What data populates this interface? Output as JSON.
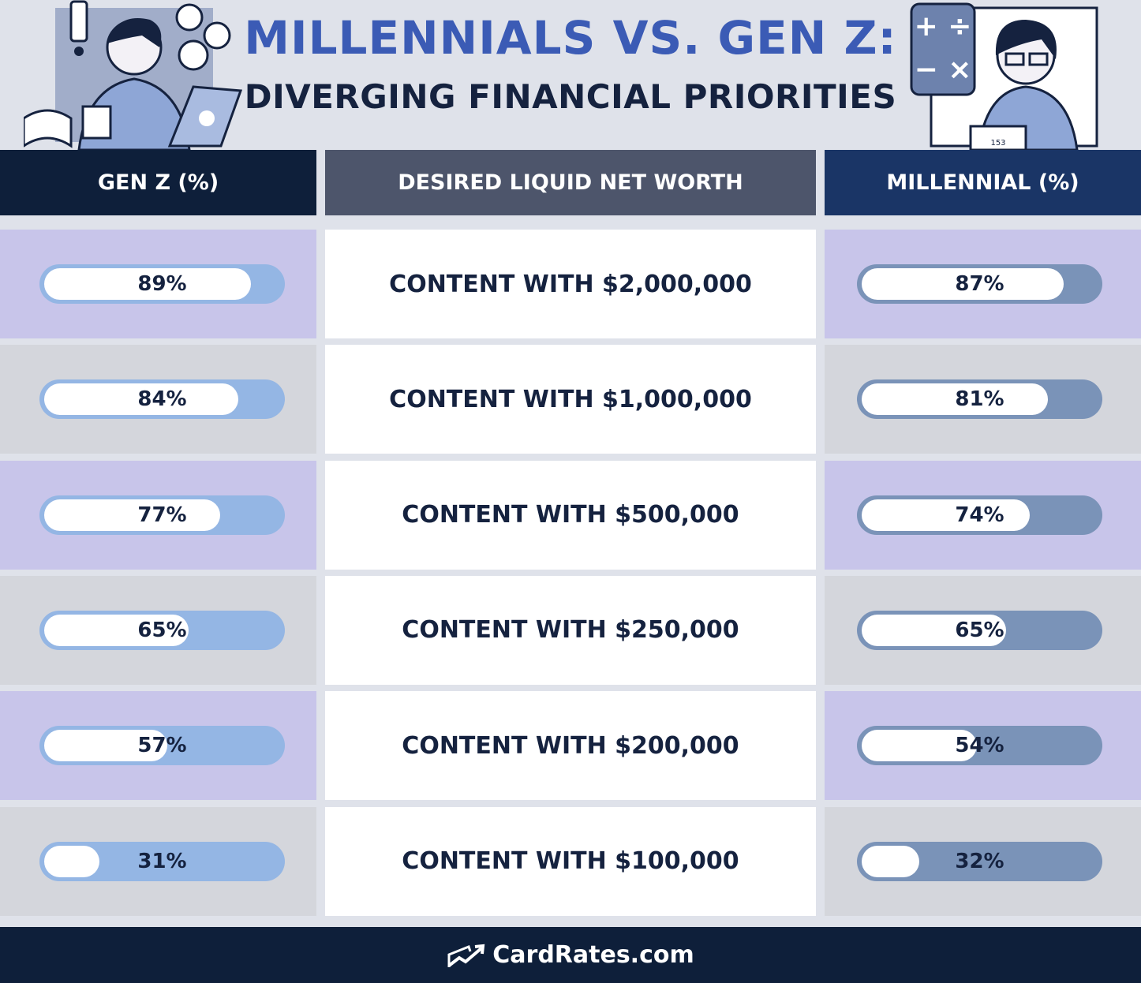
{
  "header": {
    "title_line1": "MILLENNIALS VS. GEN Z:",
    "title_line2": "DIVERGING FINANCIAL PRIORITIES",
    "left_illustration_icon": "person-with-laptop-illustration",
    "right_illustration_icon": "person-with-calculator-illustration",
    "calculator_display": "153"
  },
  "columns": {
    "genz": "GEN Z (%)",
    "middle": "DESIRED LIQUID NET WORTH",
    "millennial": "MILLENNIAL (%)"
  },
  "chart_data": {
    "type": "table",
    "categories": [
      "CONTENT WITH $2,000,000",
      "CONTENT WITH $1,000,000",
      "CONTENT WITH $500,000",
      "CONTENT WITH $250,000",
      "CONTENT WITH $200,000",
      "CONTENT WITH $100,000"
    ],
    "series": [
      {
        "name": "GEN Z (%)",
        "values": [
          89,
          84,
          77,
          65,
          57,
          31
        ],
        "labels": [
          "89%",
          "84%",
          "77%",
          "65%",
          "57%",
          "31%"
        ]
      },
      {
        "name": "MILLENNIAL (%)",
        "values": [
          87,
          81,
          74,
          65,
          54,
          32
        ],
        "labels": [
          "87%",
          "81%",
          "74%",
          "65%",
          "54%",
          "32%"
        ]
      }
    ],
    "ylim": [
      0,
      100
    ]
  },
  "colors": {
    "title_blue": "#3b5bb5",
    "navy": "#0e1f3a",
    "genz_bar": "#94b6e4",
    "millennial_bar": "#7a93b8",
    "row_purple": "#c8c5ea",
    "row_gray": "#d4d6dc"
  },
  "footer": {
    "brand": "CardRates.com",
    "logo_icon": "card-trend-logo-icon"
  }
}
